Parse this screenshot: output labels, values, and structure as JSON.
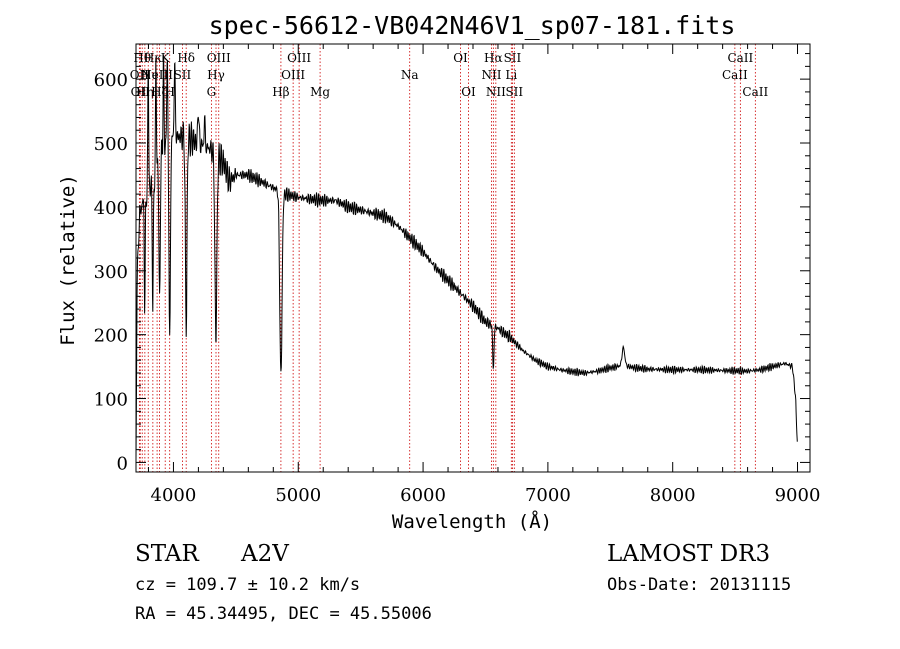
{
  "chart_data": {
    "type": "line",
    "title": "spec-56612-VB042N46V1_sp07-181.fits",
    "xlabel": "Wavelength (Å)",
    "ylabel": "Flux (relative)",
    "xlim": [
      3700,
      9100
    ],
    "ylim": [
      -15,
      655
    ],
    "x_ticks": [
      4000,
      5000,
      6000,
      7000,
      8000,
      9000
    ],
    "y_ticks": [
      0,
      100,
      200,
      300,
      400,
      500,
      600
    ],
    "x_tick_labels": [
      "4000",
      "5000",
      "6000",
      "7000",
      "8000",
      "9000"
    ],
    "y_tick_labels": [
      "0",
      "100",
      "200",
      "300",
      "400",
      "500",
      "600"
    ],
    "spectrum_continuum": [
      [
        3700,
        0
      ],
      [
        3710,
        300
      ],
      [
        3730,
        390
      ],
      [
        3760,
        410
      ],
      [
        3800,
        420
      ],
      [
        3850,
        450
      ],
      [
        3900,
        480
      ],
      [
        3950,
        500
      ],
      [
        4000,
        510
      ],
      [
        4100,
        510
      ],
      [
        4200,
        500
      ],
      [
        4300,
        490
      ],
      [
        4400,
        470
      ],
      [
        4450,
        440
      ],
      [
        4500,
        450
      ],
      [
        4600,
        450
      ],
      [
        4700,
        440
      ],
      [
        4800,
        430
      ],
      [
        4900,
        420
      ],
      [
        5000,
        415
      ],
      [
        5100,
        412
      ],
      [
        5200,
        410
      ],
      [
        5300,
        410
      ],
      [
        5400,
        400
      ],
      [
        5500,
        395
      ],
      [
        5600,
        390
      ],
      [
        5700,
        385
      ],
      [
        5800,
        370
      ],
      [
        5900,
        350
      ],
      [
        6000,
        330
      ],
      [
        6100,
        305
      ],
      [
        6200,
        285
      ],
      [
        6300,
        265
      ],
      [
        6400,
        245
      ],
      [
        6500,
        220
      ],
      [
        6600,
        210
      ],
      [
        6700,
        195
      ],
      [
        6800,
        175
      ],
      [
        6900,
        160
      ],
      [
        7000,
        150
      ],
      [
        7100,
        145
      ],
      [
        7200,
        142
      ],
      [
        7300,
        140
      ],
      [
        7400,
        143
      ],
      [
        7500,
        148
      ],
      [
        7600,
        152
      ],
      [
        7700,
        148
      ],
      [
        7800,
        146
      ],
      [
        8000,
        145
      ],
      [
        8200,
        145
      ],
      [
        8400,
        144
      ],
      [
        8600,
        143
      ],
      [
        8700,
        145
      ],
      [
        8800,
        150
      ],
      [
        8900,
        155
      ],
      [
        8960,
        150
      ],
      [
        8985,
        100
      ],
      [
        9000,
        20
      ]
    ],
    "spectrum_features": [
      {
        "center": 3770,
        "width": 5,
        "depth": -180
      },
      {
        "center": 3798,
        "width": 5,
        "depth": 210
      },
      {
        "center": 3835,
        "width": 6,
        "depth": -200
      },
      {
        "center": 3860,
        "width": 5,
        "depth": 170
      },
      {
        "center": 3889,
        "width": 7,
        "depth": -230
      },
      {
        "center": 3920,
        "width": 5,
        "depth": 150
      },
      {
        "center": 3950,
        "width": 6,
        "depth": 130
      },
      {
        "center": 3970,
        "width": 8,
        "depth": -320
      },
      {
        "center": 4010,
        "width": 6,
        "depth": 120
      },
      {
        "center": 4102,
        "width": 9,
        "depth": -300
      },
      {
        "center": 4200,
        "width": 6,
        "depth": 60
      },
      {
        "center": 4250,
        "width": 5,
        "depth": 50
      },
      {
        "center": 4340,
        "width": 11,
        "depth": -290
      },
      {
        "center": 4861,
        "width": 13,
        "depth": -290
      },
      {
        "center": 6563,
        "width": 7,
        "depth": -70
      }
    ],
    "spectral_lines": [
      {
        "wavelength": 3727,
        "label": "OII",
        "row": 2
      },
      {
        "wavelength": 3734,
        "label": "OII",
        "row": 3
      },
      {
        "wavelength": 3750,
        "label": "Hθ",
        "row": 1
      },
      {
        "wavelength": 3771,
        "label": "Hη",
        "row": 3
      },
      {
        "wavelength": 3798,
        "label": "Hι",
        "row": 2
      },
      {
        "wavelength": 3835,
        "label": "Hκ",
        "row": 1
      },
      {
        "wavelength": 3869,
        "label": "NeIII",
        "row": 2
      },
      {
        "wavelength": 3889,
        "label": "Hζ",
        "row": 3
      },
      {
        "wavelength": 3934,
        "label": "K",
        "row": 1
      },
      {
        "wavelength": 3970,
        "label": "H",
        "row": 3
      },
      {
        "wavelength": 4072,
        "label": "SII",
        "row": 2
      },
      {
        "wavelength": 4102,
        "label": "Hδ",
        "row": 1
      },
      {
        "wavelength": 4304,
        "label": "G",
        "row": 3
      },
      {
        "wavelength": 4341,
        "label": "Hγ",
        "row": 2
      },
      {
        "wavelength": 4363,
        "label": "OIII",
        "row": 1
      },
      {
        "wavelength": 4861,
        "label": "Hβ",
        "row": 3
      },
      {
        "wavelength": 4959,
        "label": "OIII",
        "row": 2
      },
      {
        "wavelength": 5007,
        "label": "OIII",
        "row": 1
      },
      {
        "wavelength": 5175,
        "label": "Mg",
        "row": 3
      },
      {
        "wavelength": 5893,
        "label": "Na",
        "row": 2
      },
      {
        "wavelength": 6300,
        "label": "OI",
        "row": 1
      },
      {
        "wavelength": 6364,
        "label": "OI",
        "row": 3
      },
      {
        "wavelength": 6548,
        "label": "NII",
        "row": 2
      },
      {
        "wavelength": 6563,
        "label": "Hα",
        "row": 1
      },
      {
        "wavelength": 6583,
        "label": "NII",
        "row": 3
      },
      {
        "wavelength": 6707,
        "label": "Li",
        "row": 2
      },
      {
        "wavelength": 6716,
        "label": "SII",
        "row": 1
      },
      {
        "wavelength": 6731,
        "label": "SII",
        "row": 3
      },
      {
        "wavelength": 8498,
        "label": "CaII",
        "row": 2
      },
      {
        "wavelength": 8542,
        "label": "CaII",
        "row": 1
      },
      {
        "wavelength": 8662,
        "label": "CaII",
        "row": 3
      }
    ],
    "annotations": {
      "object_class": "STAR",
      "subclass": "A2V",
      "survey": "LAMOST DR3",
      "redshift": "cz = 109.7 ± 10.2 km/s",
      "obs_date": "Obs-Date: 20131115",
      "coords": "RA =  45.34495, DEC =  45.55006"
    },
    "colors": {
      "spectrum": "#000000",
      "line_markers": "#cc0000",
      "axes": "#000000"
    }
  }
}
